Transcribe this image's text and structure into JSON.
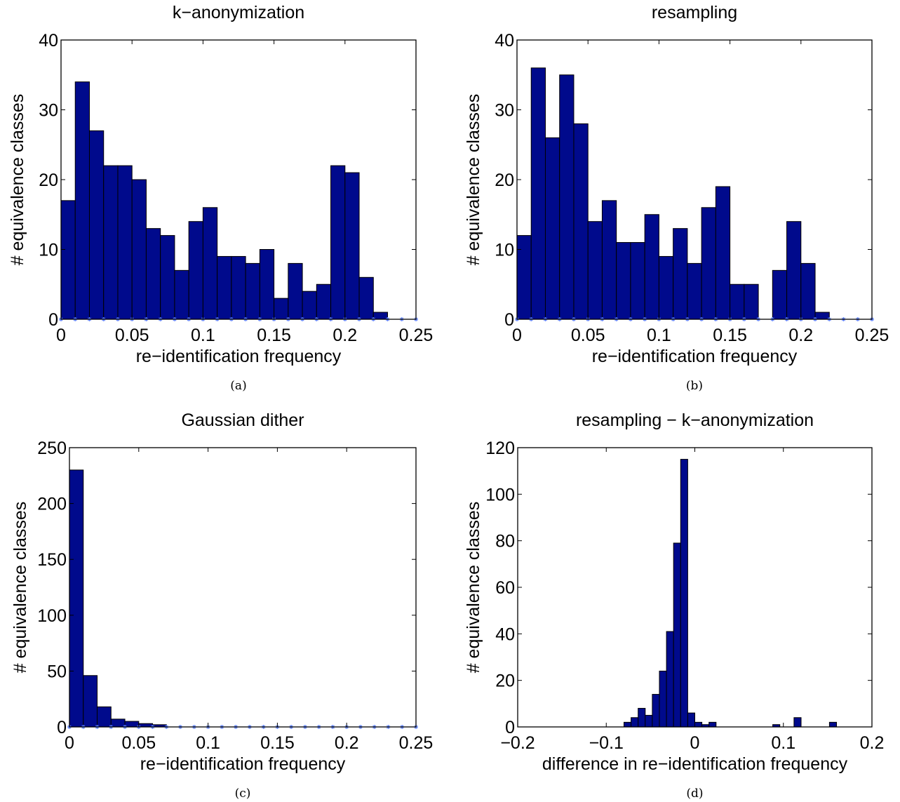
{
  "colors": {
    "bar_fill": "#000a8c",
    "bar_edge": "#000000",
    "marker": "#5a7fff",
    "axes": "#000000"
  },
  "chart_data": [
    {
      "type": "bar",
      "title": "k−anonymization",
      "xlabel": "re−identification frequency",
      "ylabel": "# equivalence classes",
      "caption": "(a)",
      "xlim": [
        0,
        0.25
      ],
      "ylim": [
        0,
        40
      ],
      "xticks": [
        "0",
        "0.05",
        "0.1",
        "0.15",
        "0.2",
        "0.25"
      ],
      "xtick_values": [
        0,
        0.05,
        0.1,
        0.15,
        0.2,
        0.25
      ],
      "yticks": [
        "0",
        "10",
        "20",
        "30",
        "40"
      ],
      "ytick_values": [
        0,
        10,
        20,
        30,
        40
      ],
      "bin_start": 0,
      "bin_width": 0.01,
      "values": [
        17,
        34,
        27,
        22,
        22,
        20,
        13,
        12,
        7,
        14,
        16,
        9,
        9,
        8,
        10,
        3,
        8,
        4,
        5,
        22,
        21,
        6,
        1,
        0,
        0
      ],
      "markers": "every bin edge along y = 0",
      "grid": false
    },
    {
      "type": "bar",
      "title": "resampling",
      "xlabel": "re−identification frequency",
      "ylabel": "# equivalence classes",
      "caption": "(b)",
      "xlim": [
        0,
        0.25
      ],
      "ylim": [
        0,
        40
      ],
      "xticks": [
        "0",
        "0.05",
        "0.1",
        "0.15",
        "0.2",
        "0.25"
      ],
      "xtick_values": [
        0,
        0.05,
        0.1,
        0.15,
        0.2,
        0.25
      ],
      "yticks": [
        "0",
        "10",
        "20",
        "30",
        "40"
      ],
      "ytick_values": [
        0,
        10,
        20,
        30,
        40
      ],
      "bin_start": 0,
      "bin_width": 0.01,
      "values": [
        12,
        36,
        26,
        35,
        28,
        14,
        17,
        11,
        11,
        15,
        9,
        13,
        8,
        16,
        19,
        5,
        5,
        0,
        7,
        14,
        8,
        1,
        0,
        0,
        0
      ],
      "markers": "every bin edge along y = 0",
      "grid": false
    },
    {
      "type": "bar",
      "title": "Gaussian dither",
      "xlabel": "re−identification frequency",
      "ylabel": "# equivalence classes",
      "caption": "(c)",
      "xlim": [
        0,
        0.25
      ],
      "ylim": [
        0,
        250
      ],
      "xticks": [
        "0",
        "0.05",
        "0.1",
        "0.15",
        "0.2",
        "0.25"
      ],
      "xtick_values": [
        0,
        0.05,
        0.1,
        0.15,
        0.2,
        0.25
      ],
      "yticks": [
        "0",
        "50",
        "100",
        "150",
        "200",
        "250"
      ],
      "ytick_values": [
        0,
        50,
        100,
        150,
        200,
        250
      ],
      "bin_start": 0,
      "bin_width": 0.01,
      "values": [
        230,
        46,
        18,
        7,
        5,
        3,
        2,
        0,
        0,
        0,
        0,
        0,
        0,
        0,
        0,
        0,
        0,
        0,
        0,
        0,
        0,
        0,
        0,
        0,
        0
      ],
      "markers": "every bin edge along y = 0",
      "grid": false
    },
    {
      "type": "bar",
      "title": "resampling − k−anonymization",
      "xlabel": "difference in re−identification frequency",
      "ylabel": "# equivalence classes",
      "caption": "(d)",
      "xlim": [
        -0.2,
        0.2
      ],
      "ylim": [
        0,
        120
      ],
      "xticks": [
        "−0.2",
        "−0.1",
        "0",
        "0.1",
        "0.2"
      ],
      "xtick_values": [
        -0.2,
        -0.1,
        0,
        0.1,
        0.2
      ],
      "yticks": [
        "0",
        "20",
        "40",
        "60",
        "80",
        "100",
        "120"
      ],
      "ytick_values": [
        0,
        20,
        40,
        60,
        80,
        100,
        120
      ],
      "bin_start": -0.08,
      "bin_width": 0.008,
      "values": [
        2,
        4,
        8,
        5,
        14,
        24,
        41,
        79,
        115,
        6,
        2,
        1,
        2,
        0,
        0,
        0,
        0,
        0,
        0,
        0,
        0,
        1,
        0,
        0,
        4,
        0,
        0,
        0,
        0,
        2
      ],
      "markers": "none",
      "grid": false
    }
  ]
}
